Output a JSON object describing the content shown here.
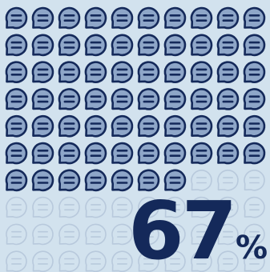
{
  "infographic": {
    "stat_value": "67",
    "stat_unit": "%",
    "grid_columns": 10,
    "grid_rows": 10,
    "filled_icon_count": 67,
    "icon_name": "chat-bubble-icon",
    "colors": {
      "background": "#d2e2ee",
      "filled_icon_fill": "#8ea6c8",
      "filled_icon_stroke": "#14295a",
      "empty_icon_stroke": "#b8c9dc",
      "stat_text": "#14295a"
    }
  }
}
